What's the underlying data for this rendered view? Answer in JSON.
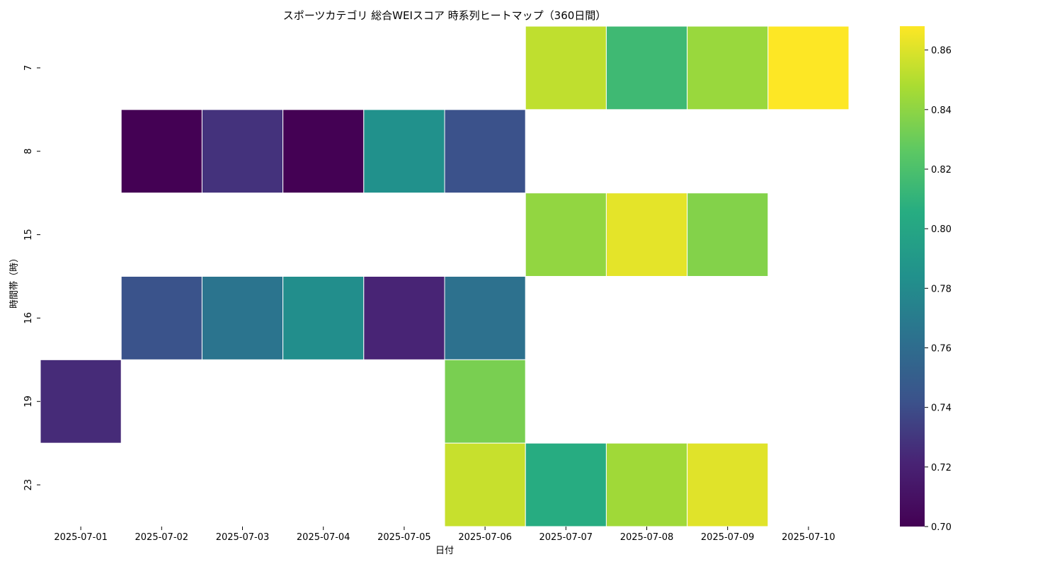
{
  "chart_data": {
    "type": "heatmap",
    "title": "スポーツカテゴリ 総合WEIスコア 時系列ヒートマップ（360日間）",
    "xlabel": "日付",
    "ylabel": "時間帯（時）",
    "x": [
      "2025-07-01",
      "2025-07-02",
      "2025-07-03",
      "2025-07-04",
      "2025-07-05",
      "2025-07-06",
      "2025-07-07",
      "2025-07-08",
      "2025-07-09",
      "2025-07-10"
    ],
    "y": [
      "7",
      "8",
      "15",
      "16",
      "19",
      "23"
    ],
    "values": [
      [
        null,
        null,
        null,
        null,
        null,
        null,
        0.853,
        0.815,
        0.843,
        0.868
      ],
      [
        null,
        0.7,
        0.728,
        0.7,
        0.784,
        0.742,
        null,
        null,
        null,
        null
      ],
      [
        null,
        null,
        null,
        null,
        null,
        null,
        0.841,
        0.862,
        0.837,
        null
      ],
      [
        null,
        0.743,
        0.765,
        0.782,
        0.722,
        0.763,
        null,
        null,
        null,
        null
      ],
      [
        0.725,
        null,
        null,
        null,
        null,
        0.834,
        null,
        null,
        null,
        null
      ],
      [
        null,
        null,
        null,
        null,
        null,
        0.855,
        0.805,
        0.845,
        0.861,
        null
      ]
    ],
    "colorbar": {
      "min": 0.7,
      "max": 0.868,
      "ticks": [
        "0.70",
        "0.72",
        "0.74",
        "0.76",
        "0.78",
        "0.80",
        "0.82",
        "0.84",
        "0.86"
      ],
      "colormap": "viridis"
    },
    "grid": false,
    "missing_color": "#ffffff",
    "cell_border_color": "#ffffff"
  }
}
